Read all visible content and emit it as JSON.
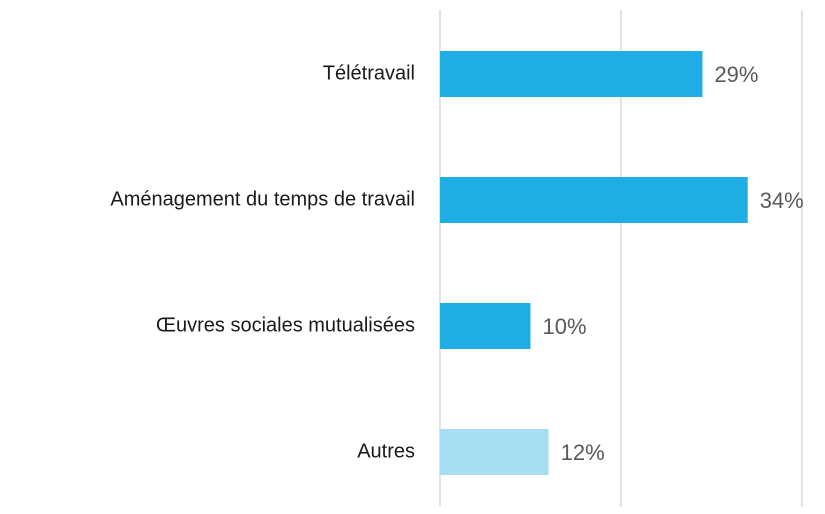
{
  "chart_data": {
    "type": "bar",
    "orientation": "horizontal",
    "categories": [
      "Télétravail",
      "Aménagement du temps de travail",
      "Œuvres sociales mutualisées",
      "Autres"
    ],
    "values": [
      29,
      34,
      10,
      12
    ],
    "value_labels": [
      "29%",
      "34%",
      "10%",
      "12%"
    ],
    "colors": [
      "#1eade5",
      "#1eade5",
      "#1eade5",
      "#a6ddf3"
    ],
    "xlim": [
      0,
      40
    ],
    "xticks": [
      0,
      20,
      40
    ],
    "grid": true
  }
}
